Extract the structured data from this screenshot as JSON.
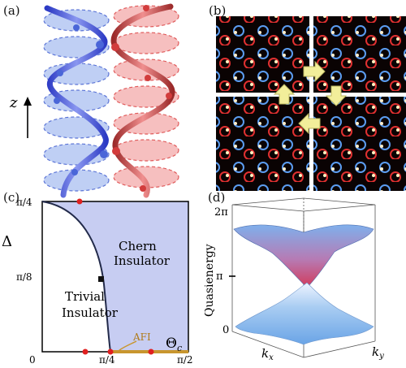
{
  "panels": {
    "a": {
      "label": "(a)",
      "axis_label": "z"
    },
    "b": {
      "label": "(b)"
    },
    "c": {
      "label": "(c)",
      "y_label": "Δ",
      "x_label": "Θ",
      "x_label_sub": "c",
      "y_ticks": [
        "π/4",
        "π/8",
        "0"
      ],
      "x_ticks": [
        "π/4",
        "π/2"
      ],
      "regions": {
        "chern_line1": "Chern",
        "chern_line2": "Insulator",
        "trivial_line1": "Trivial",
        "trivial_line2": "Insulator",
        "afi": "AFI"
      },
      "colors": {
        "chern": "#c7cdf2",
        "afi": "#c8962e",
        "marker": "#e02020"
      }
    },
    "d": {
      "label": "(d)",
      "y_label": "Quasienergy",
      "y_ticks": [
        "2π",
        "π",
        "0"
      ],
      "x_label1": "k",
      "x_label1_sub": "x",
      "x_label2": "k",
      "x_label2_sub": "y"
    }
  },
  "colors": {
    "blue": "#5b74d6",
    "red": "#e05a5a",
    "blue_fill": "#a9bff0",
    "red_fill": "#f3a9a9"
  }
}
